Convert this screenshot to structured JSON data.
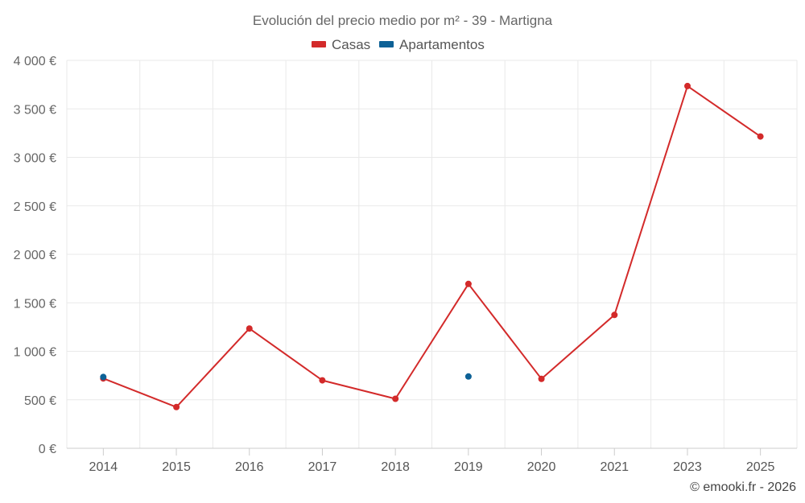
{
  "chart_data": {
    "type": "line",
    "title": "Evolución del precio medio por m² - 39 - Martigna",
    "categories": [
      "2014",
      "2015",
      "2016",
      "2017",
      "2018",
      "2019",
      "2020",
      "2021",
      "2023",
      "2025"
    ],
    "ylim": [
      0,
      4000
    ],
    "yticks": [
      0,
      500,
      1000,
      1500,
      2000,
      2500,
      3000,
      3500,
      4000
    ],
    "ytick_labels": [
      "0 €",
      "500 €",
      "1 000 €",
      "1 500 €",
      "2 000 €",
      "2 500 €",
      "3 000 €",
      "3 500 €",
      "4 000 €"
    ],
    "grid": true,
    "legend_position": "top-center",
    "series": [
      {
        "name": "Casas",
        "color": "#d32a2a",
        "values": [
          720,
          425,
          1235,
          700,
          510,
          1695,
          715,
          1375,
          3735,
          3215
        ]
      },
      {
        "name": "Apartamentos",
        "color": "#0d6196",
        "values": [
          735,
          null,
          null,
          null,
          null,
          740,
          null,
          null,
          null,
          null
        ]
      }
    ],
    "credit": "© emooki.fr - 2026"
  }
}
